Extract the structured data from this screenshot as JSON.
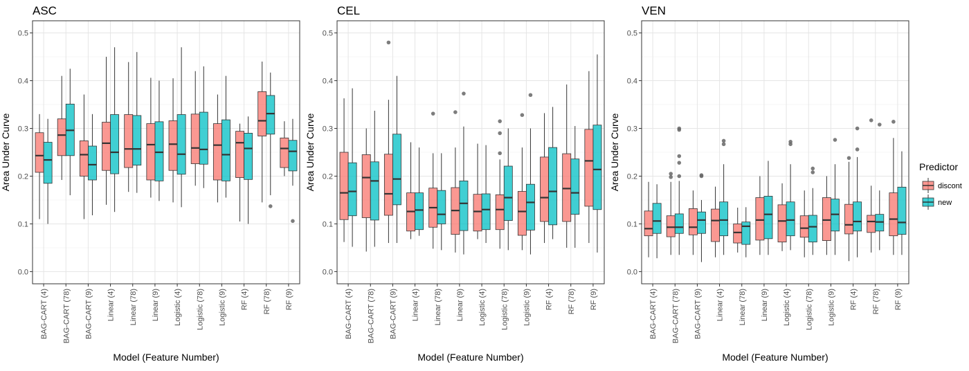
{
  "chart_data": {
    "type": "boxplot",
    "ylabel": "Area Under Curve",
    "xlabel": "Model (Feature Number)",
    "ylim": [
      0,
      0.5
    ],
    "yticks": [
      "0.0",
      "0.1",
      "0.2",
      "0.3",
      "0.4",
      "0.5"
    ],
    "grid": true,
    "categories": [
      "BAG-CART (4)",
      "BAG-CART (78)",
      "BAG-CART (9)",
      "Linear (4)",
      "Linear (78)",
      "Linear (9)",
      "Logistic (4)",
      "Logistic (78)",
      "Logistic (9)",
      "RF (4)",
      "RF (78)",
      "RF (9)"
    ],
    "legend": {
      "title": "Predictor",
      "position": "right",
      "entries": [
        {
          "name": "discont",
          "color": "#F8766D"
        },
        {
          "name": "new",
          "color": "#00BFC4"
        }
      ]
    },
    "panels": [
      {
        "title": "ASC",
        "series": [
          {
            "name": "discont",
            "boxes": [
              {
                "min": 0.11,
                "q1": 0.208,
                "median": 0.243,
                "q3": 0.291,
                "max": 0.33,
                "outliers": []
              },
              {
                "min": 0.192,
                "q1": 0.243,
                "median": 0.286,
                "q3": 0.32,
                "max": 0.41,
                "outliers": []
              },
              {
                "min": 0.11,
                "q1": 0.2,
                "median": 0.245,
                "q3": 0.274,
                "max": 0.371,
                "outliers": []
              },
              {
                "min": 0.14,
                "q1": 0.212,
                "median": 0.269,
                "q3": 0.313,
                "max": 0.45,
                "outliers": []
              },
              {
                "min": 0.167,
                "q1": 0.218,
                "median": 0.257,
                "q3": 0.329,
                "max": 0.439,
                "outliers": []
              },
              {
                "min": 0.155,
                "q1": 0.192,
                "median": 0.266,
                "q3": 0.31,
                "max": 0.406,
                "outliers": []
              },
              {
                "min": 0.145,
                "q1": 0.212,
                "median": 0.267,
                "q3": 0.316,
                "max": 0.405,
                "outliers": []
              },
              {
                "min": 0.18,
                "q1": 0.226,
                "median": 0.259,
                "q3": 0.33,
                "max": 0.42,
                "outliers": []
              },
              {
                "min": 0.145,
                "q1": 0.192,
                "median": 0.265,
                "q3": 0.31,
                "max": 0.371,
                "outliers": []
              },
              {
                "min": 0.105,
                "q1": 0.197,
                "median": 0.27,
                "q3": 0.294,
                "max": 0.31,
                "outliers": []
              },
              {
                "min": 0.145,
                "q1": 0.284,
                "median": 0.316,
                "q3": 0.377,
                "max": 0.44,
                "outliers": []
              },
              {
                "min": 0.2,
                "q1": 0.218,
                "median": 0.258,
                "q3": 0.28,
                "max": 0.315,
                "outliers": []
              }
            ]
          },
          {
            "name": "new",
            "boxes": [
              {
                "min": 0.1,
                "q1": 0.185,
                "median": 0.234,
                "q3": 0.271,
                "max": 0.32,
                "outliers": []
              },
              {
                "min": 0.16,
                "q1": 0.243,
                "median": 0.296,
                "q3": 0.351,
                "max": 0.425,
                "outliers": []
              },
              {
                "min": 0.118,
                "q1": 0.192,
                "median": 0.224,
                "q3": 0.263,
                "max": 0.33,
                "outliers": []
              },
              {
                "min": 0.125,
                "q1": 0.205,
                "median": 0.25,
                "q3": 0.329,
                "max": 0.47,
                "outliers": []
              },
              {
                "min": 0.165,
                "q1": 0.223,
                "median": 0.257,
                "q3": 0.327,
                "max": 0.46,
                "outliers": []
              },
              {
                "min": 0.148,
                "q1": 0.19,
                "median": 0.25,
                "q3": 0.314,
                "max": 0.4,
                "outliers": []
              },
              {
                "min": 0.135,
                "q1": 0.204,
                "median": 0.246,
                "q3": 0.329,
                "max": 0.47,
                "outliers": []
              },
              {
                "min": 0.175,
                "q1": 0.225,
                "median": 0.256,
                "q3": 0.334,
                "max": 0.43,
                "outliers": []
              },
              {
                "min": 0.155,
                "q1": 0.19,
                "median": 0.245,
                "q3": 0.318,
                "max": 0.41,
                "outliers": []
              },
              {
                "min": 0.1,
                "q1": 0.193,
                "median": 0.258,
                "q3": 0.29,
                "max": 0.325,
                "outliers": []
              },
              {
                "min": 0.16,
                "q1": 0.288,
                "median": 0.331,
                "q3": 0.369,
                "max": 0.417,
                "outliers": [
                  0.137
                ]
              },
              {
                "min": 0.18,
                "q1": 0.211,
                "median": 0.252,
                "q3": 0.275,
                "max": 0.32,
                "outliers": [
                  0.106
                ]
              }
            ]
          }
        ]
      },
      {
        "title": "CEL",
        "series": [
          {
            "name": "discont",
            "boxes": [
              {
                "min": 0.062,
                "q1": 0.109,
                "median": 0.165,
                "q3": 0.25,
                "max": 0.363,
                "outliers": []
              },
              {
                "min": 0.042,
                "q1": 0.113,
                "median": 0.197,
                "q3": 0.245,
                "max": 0.3,
                "outliers": []
              },
              {
                "min": 0.06,
                "q1": 0.118,
                "median": 0.163,
                "q3": 0.246,
                "max": 0.36,
                "outliers": [
                  0.48
                ]
              },
              {
                "min": 0.068,
                "q1": 0.085,
                "median": 0.126,
                "q3": 0.165,
                "max": 0.271,
                "outliers": []
              },
              {
                "min": 0.048,
                "q1": 0.093,
                "median": 0.134,
                "q3": 0.175,
                "max": 0.248,
                "outliers": [
                  0.331
                ]
              },
              {
                "min": 0.04,
                "q1": 0.078,
                "median": 0.128,
                "q3": 0.176,
                "max": 0.26,
                "outliers": [
                  0.334
                ]
              },
              {
                "min": 0.068,
                "q1": 0.085,
                "median": 0.126,
                "q3": 0.162,
                "max": 0.268,
                "outliers": []
              },
              {
                "min": 0.048,
                "q1": 0.088,
                "median": 0.13,
                "q3": 0.161,
                "max": 0.235,
                "outliers": [
                  0.248,
                  0.29,
                  0.315
                ]
              },
              {
                "min": 0.045,
                "q1": 0.076,
                "median": 0.126,
                "q3": 0.168,
                "max": 0.26,
                "outliers": [
                  0.328
                ]
              },
              {
                "min": 0.06,
                "q1": 0.105,
                "median": 0.155,
                "q3": 0.24,
                "max": 0.332,
                "outliers": []
              },
              {
                "min": 0.05,
                "q1": 0.105,
                "median": 0.174,
                "q3": 0.247,
                "max": 0.392,
                "outliers": []
              },
              {
                "min": 0.06,
                "q1": 0.137,
                "median": 0.232,
                "q3": 0.298,
                "max": 0.42,
                "outliers": []
              }
            ]
          },
          {
            "name": "new",
            "boxes": [
              {
                "min": 0.052,
                "q1": 0.117,
                "median": 0.168,
                "q3": 0.228,
                "max": 0.384,
                "outliers": []
              },
              {
                "min": 0.052,
                "q1": 0.108,
                "median": 0.19,
                "q3": 0.23,
                "max": 0.337,
                "outliers": []
              },
              {
                "min": 0.06,
                "q1": 0.14,
                "median": 0.194,
                "q3": 0.288,
                "max": 0.41,
                "outliers": []
              },
              {
                "min": 0.075,
                "q1": 0.088,
                "median": 0.129,
                "q3": 0.165,
                "max": 0.26,
                "outliers": []
              },
              {
                "min": 0.045,
                "q1": 0.1,
                "median": 0.12,
                "q3": 0.17,
                "max": 0.248,
                "outliers": []
              },
              {
                "min": 0.036,
                "q1": 0.086,
                "median": 0.143,
                "q3": 0.19,
                "max": 0.304,
                "outliers": [
                  0.373
                ]
              },
              {
                "min": 0.06,
                "q1": 0.088,
                "median": 0.13,
                "q3": 0.163,
                "max": 0.265,
                "outliers": []
              },
              {
                "min": 0.045,
                "q1": 0.107,
                "median": 0.155,
                "q3": 0.221,
                "max": 0.3,
                "outliers": []
              },
              {
                "min": 0.036,
                "q1": 0.087,
                "median": 0.145,
                "q3": 0.183,
                "max": 0.3,
                "outliers": [
                  0.37
                ]
              },
              {
                "min": 0.068,
                "q1": 0.098,
                "median": 0.168,
                "q3": 0.26,
                "max": 0.345,
                "outliers": []
              },
              {
                "min": 0.05,
                "q1": 0.12,
                "median": 0.165,
                "q3": 0.236,
                "max": 0.305,
                "outliers": []
              },
              {
                "min": 0.04,
                "q1": 0.13,
                "median": 0.214,
                "q3": 0.307,
                "max": 0.455,
                "outliers": []
              }
            ]
          }
        ]
      },
      {
        "title": "VEN",
        "series": [
          {
            "name": "discont",
            "boxes": [
              {
                "min": 0.03,
                "q1": 0.075,
                "median": 0.09,
                "q3": 0.127,
                "max": 0.188,
                "outliers": []
              },
              {
                "min": 0.035,
                "q1": 0.073,
                "median": 0.093,
                "q3": 0.117,
                "max": 0.188,
                "outliers": [
                  0.198,
                  0.205
                ]
              },
              {
                "min": 0.035,
                "q1": 0.077,
                "median": 0.093,
                "q3": 0.132,
                "max": 0.17,
                "outliers": []
              },
              {
                "min": 0.03,
                "q1": 0.063,
                "median": 0.107,
                "q3": 0.131,
                "max": 0.178,
                "outliers": []
              },
              {
                "min": 0.04,
                "q1": 0.06,
                "median": 0.082,
                "q3": 0.1,
                "max": 0.134,
                "outliers": []
              },
              {
                "min": 0.035,
                "q1": 0.066,
                "median": 0.108,
                "q3": 0.155,
                "max": 0.2,
                "outliers": []
              },
              {
                "min": 0.043,
                "q1": 0.062,
                "median": 0.106,
                "q3": 0.14,
                "max": 0.185,
                "outliers": []
              },
              {
                "min": 0.03,
                "q1": 0.072,
                "median": 0.091,
                "q3": 0.117,
                "max": 0.17,
                "outliers": []
              },
              {
                "min": 0.035,
                "q1": 0.065,
                "median": 0.108,
                "q3": 0.155,
                "max": 0.2,
                "outliers": []
              },
              {
                "min": 0.022,
                "q1": 0.079,
                "median": 0.098,
                "q3": 0.141,
                "max": 0.23,
                "outliers": [
                  0.238
                ]
              },
              {
                "min": 0.04,
                "q1": 0.082,
                "median": 0.105,
                "q3": 0.118,
                "max": 0.18,
                "outliers": [
                  0.317
                ]
              },
              {
                "min": 0.035,
                "q1": 0.075,
                "median": 0.11,
                "q3": 0.165,
                "max": 0.28,
                "outliers": [
                  0.314
                ]
              }
            ]
          },
          {
            "name": "new",
            "boxes": [
              {
                "min": 0.028,
                "q1": 0.08,
                "median": 0.106,
                "q3": 0.143,
                "max": 0.183,
                "outliers": []
              },
              {
                "min": 0.035,
                "q1": 0.08,
                "median": 0.093,
                "q3": 0.121,
                "max": 0.19,
                "outliers": [
                  0.2,
                  0.228,
                  0.242,
                  0.297,
                  0.3
                ]
              },
              {
                "min": 0.02,
                "q1": 0.08,
                "median": 0.108,
                "q3": 0.125,
                "max": 0.15,
                "outliers": [
                  0.2,
                  0.202
                ]
              },
              {
                "min": 0.035,
                "q1": 0.075,
                "median": 0.108,
                "q3": 0.146,
                "max": 0.225,
                "outliers": [
                  0.267,
                  0.274
                ]
              },
              {
                "min": 0.03,
                "q1": 0.057,
                "median": 0.095,
                "q3": 0.104,
                "max": 0.135,
                "outliers": []
              },
              {
                "min": 0.035,
                "q1": 0.069,
                "median": 0.12,
                "q3": 0.158,
                "max": 0.232,
                "outliers": []
              },
              {
                "min": 0.045,
                "q1": 0.075,
                "median": 0.108,
                "q3": 0.146,
                "max": 0.225,
                "outliers": [
                  0.267,
                  0.272
                ]
              },
              {
                "min": 0.035,
                "q1": 0.062,
                "median": 0.094,
                "q3": 0.118,
                "max": 0.175,
                "outliers": [
                  0.208,
                  0.216
                ]
              },
              {
                "min": 0.035,
                "q1": 0.085,
                "median": 0.12,
                "q3": 0.152,
                "max": 0.225,
                "outliers": [
                  0.276
                ]
              },
              {
                "min": 0.03,
                "q1": 0.085,
                "median": 0.105,
                "q3": 0.146,
                "max": 0.24,
                "outliers": [
                  0.256,
                  0.3
                ]
              },
              {
                "min": 0.045,
                "q1": 0.085,
                "median": 0.104,
                "q3": 0.12,
                "max": 0.17,
                "outliers": [
                  0.308
                ]
              },
              {
                "min": 0.035,
                "q1": 0.078,
                "median": 0.103,
                "q3": 0.177,
                "max": 0.252,
                "outliers": []
              }
            ]
          }
        ]
      }
    ]
  }
}
